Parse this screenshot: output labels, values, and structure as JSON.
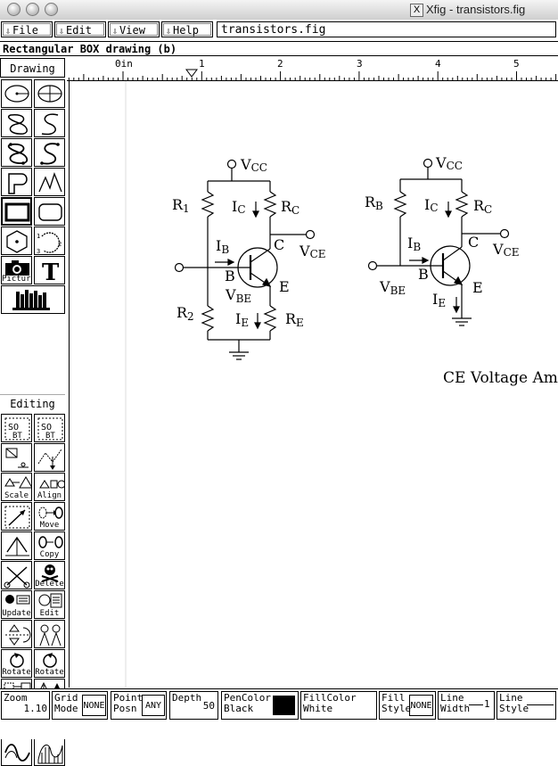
{
  "window": {
    "title": "Xfig - transistors.fig"
  },
  "menu": [
    {
      "label": "File"
    },
    {
      "label": "Edit"
    },
    {
      "label": "View"
    },
    {
      "label": "Help"
    }
  ],
  "filename": "transistors.fig",
  "message": "Rectangular BOX drawing   (b)",
  "drawing_label": "Drawing",
  "editing_label": "Editing",
  "ruler": {
    "labels": [
      "0in",
      "1",
      "2",
      "3",
      "4",
      "5"
    ]
  },
  "tool_labels": {
    "picture": "Picture",
    "scale": "Scale",
    "align": "Align",
    "move": "Move",
    "copy": "Copy",
    "delete": "Delete",
    "update": "Update",
    "edit": "Edit",
    "rotate_cw": "Rotate",
    "rotate_ccw": "Rotate"
  },
  "circuit": {
    "vcc": "V",
    "vcc_sub": "CC",
    "r1": "R",
    "r1_sub": "1",
    "r2": "R",
    "r2_sub": "2",
    "rb": "R",
    "rb_sub": "B",
    "rc": "R",
    "rc_sub": "C",
    "re": "R",
    "re_sub": "E",
    "ic": "I",
    "ic_sub": "C",
    "ib": "I",
    "ib_sub": "B",
    "ie": "I",
    "ie_sub": "E",
    "vce": "V",
    "vce_sub": "CE",
    "vbe": "V",
    "vbe_sub": "BE",
    "b": "B",
    "c": "C",
    "e": "E",
    "caption": "CE Voltage Ampl"
  },
  "status": {
    "zoom_label": "Zoom",
    "zoom_value": "1.10",
    "grid_label1": "Grid",
    "grid_label2": "Mode",
    "grid_value": "NONE",
    "point_label1": "Point",
    "point_label2": "Posn",
    "point_value": "ANY",
    "depth_label": "Depth",
    "depth_value": "50",
    "pencolor_label": "PenColor",
    "pencolor_value": "Black",
    "fillcolor_label": "FillColor",
    "fillcolor_value": "White",
    "fillstyle_label1": "Fill",
    "fillstyle_label2": "Style",
    "fillstyle_value": "NONE",
    "linewidth_label1": "Line",
    "linewidth_label2": "Width",
    "linewidth_value": "1",
    "linestyle_label1": "Line",
    "linestyle_label2": "Style"
  }
}
